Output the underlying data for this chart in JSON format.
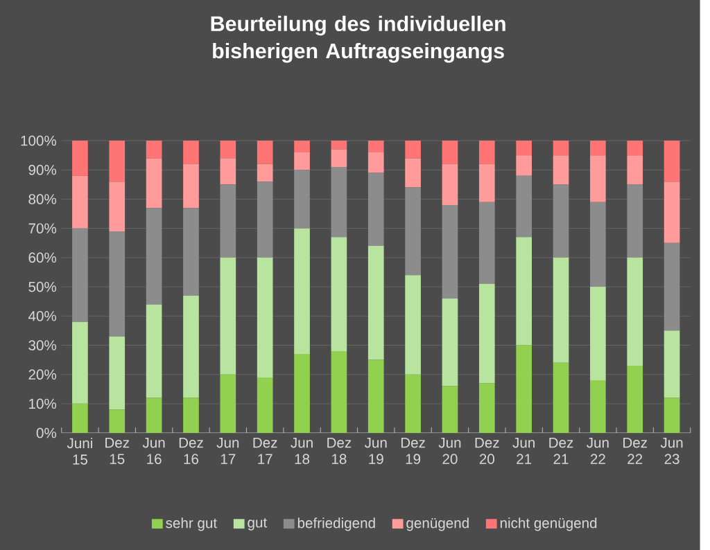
{
  "chart_data": {
    "type": "bar",
    "stacked": true,
    "title": "Beurteilung des individuellen bisherigen Auftragseingangs",
    "categories": [
      "Juni 15",
      "Dez 15",
      "Jun 16",
      "Dez 16",
      "Jun 17",
      "Dez 17",
      "Jun 18",
      "Dez 18",
      "Jun 19",
      "Dez 19",
      "Jun 20",
      "Dez 20",
      "Jun 21",
      "Dez 21",
      "Jun 22",
      "Dez 22",
      "Jun 23"
    ],
    "series": [
      {
        "name": "sehr gut",
        "color": "#92d050",
        "values": [
          10,
          8,
          12,
          12,
          20,
          19,
          27,
          28,
          25,
          20,
          16,
          17,
          30,
          24,
          18,
          23,
          12
        ]
      },
      {
        "name": "gut",
        "color": "#b8e4a0",
        "values": [
          28,
          25,
          32,
          35,
          40,
          41,
          43,
          39,
          39,
          34,
          30,
          34,
          37,
          36,
          32,
          37,
          23
        ]
      },
      {
        "name": "befriedigend",
        "color": "#8c8c8c",
        "values": [
          32,
          36,
          33,
          30,
          25,
          26,
          20,
          24,
          25,
          30,
          32,
          28,
          21,
          25,
          29,
          25,
          30
        ]
      },
      {
        "name": "genügend",
        "color": "#ff9b9b",
        "values": [
          18,
          17,
          17,
          15,
          9,
          6,
          6,
          6,
          7,
          10,
          14,
          13,
          7,
          10,
          16,
          10,
          21
        ]
      },
      {
        "name": "nicht genügend",
        "color": "#ff7474",
        "values": [
          12,
          14,
          6,
          8,
          6,
          8,
          4,
          3,
          4,
          6,
          8,
          8,
          5,
          5,
          5,
          5,
          14
        ]
      }
    ],
    "ylim": [
      0,
      100
    ],
    "yticks": [
      {
        "value": 0,
        "label": "0%"
      },
      {
        "value": 10,
        "label": "10%"
      },
      {
        "value": 20,
        "label": "20%"
      },
      {
        "value": 30,
        "label": "30%"
      },
      {
        "value": 40,
        "label": "40%"
      },
      {
        "value": 50,
        "label": "50%"
      },
      {
        "value": 60,
        "label": "60%"
      },
      {
        "value": 70,
        "label": "70%"
      },
      {
        "value": 80,
        "label": "80%"
      },
      {
        "value": 90,
        "label": "90%"
      },
      {
        "value": 100,
        "label": "100%"
      }
    ],
    "grid": "y",
    "legend": "bottom"
  }
}
